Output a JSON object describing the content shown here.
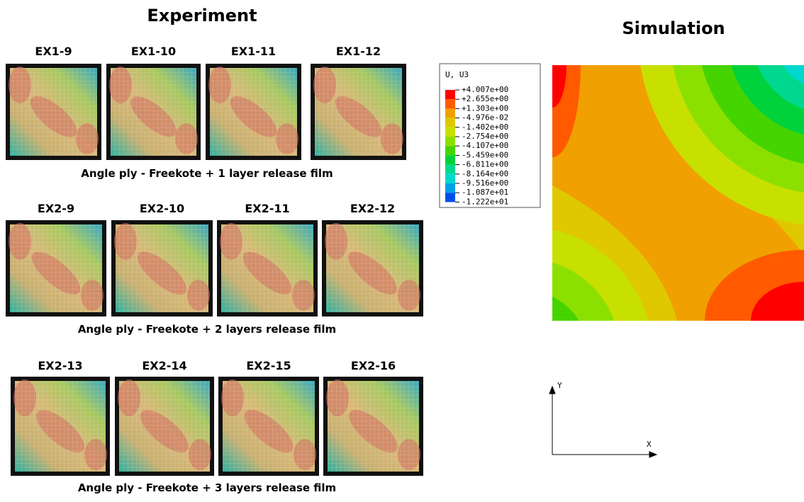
{
  "experiment": {
    "title": "Experiment",
    "groups": [
      {
        "labels": [
          "EX1-9",
          "EX1-10",
          "EX1-11",
          "EX1-12"
        ],
        "caption": "Angle ply - Freekote + 1 layer release film"
      },
      {
        "labels": [
          "EX2-9",
          "EX2-10",
          "EX2-11",
          "EX2-12"
        ],
        "caption": "Angle ply - Freekote + 2 layers release film"
      },
      {
        "labels": [
          "EX2-13",
          "EX2-14",
          "EX2-15",
          "EX2-16"
        ],
        "caption": "Angle ply - Freekote + 3 layers release film"
      }
    ]
  },
  "simulation": {
    "title": "Simulation",
    "legend": {
      "title": "U, U3",
      "labels": [
        "+4.007e+00",
        "+2.655e+00",
        "+1.303e+00",
        "-4.976e-02",
        "-1.402e+00",
        "-2.754e+00",
        "-4.107e+00",
        "-5.459e+00",
        "-6.811e+00",
        "-8.164e+00",
        "-9.516e+00",
        "-1.087e+01",
        "-1.222e+01"
      ],
      "colors": [
        "#ff0000",
        "#ff5a00",
        "#f0a000",
        "#e0c800",
        "#c8e000",
        "#8ce000",
        "#46d400",
        "#00d23c",
        "#00d890",
        "#00d8d0",
        "#00a0e8",
        "#0050e8"
      ]
    },
    "axes": {
      "y": "Y",
      "x": "X"
    }
  }
}
